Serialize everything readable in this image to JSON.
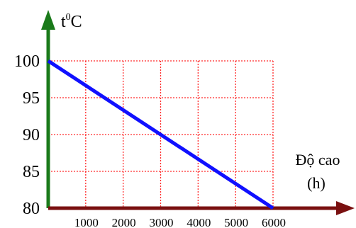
{
  "chart_data": {
    "type": "line",
    "ylabel_base": "t",
    "ylabel_sup": "0",
    "ylabel_unit": "C",
    "xlabel_line1": "Độ cao",
    "xlabel_line2": "(h)",
    "x_ticks": [
      "1000",
      "2000",
      "3000",
      "4000",
      "5000",
      "6000"
    ],
    "y_ticks": [
      "100",
      "95",
      "90",
      "85",
      "80"
    ],
    "xlim": [
      0,
      6000
    ],
    "ylim": [
      80,
      100
    ],
    "grid": true,
    "series": [
      {
        "x": [
          0,
          6000
        ],
        "y": [
          100,
          80
        ]
      }
    ],
    "colors": {
      "y_axis": "#1a7a1a",
      "x_axis": "#7a1010",
      "grid": "#ff2a2a",
      "line": "#1010ff"
    }
  }
}
